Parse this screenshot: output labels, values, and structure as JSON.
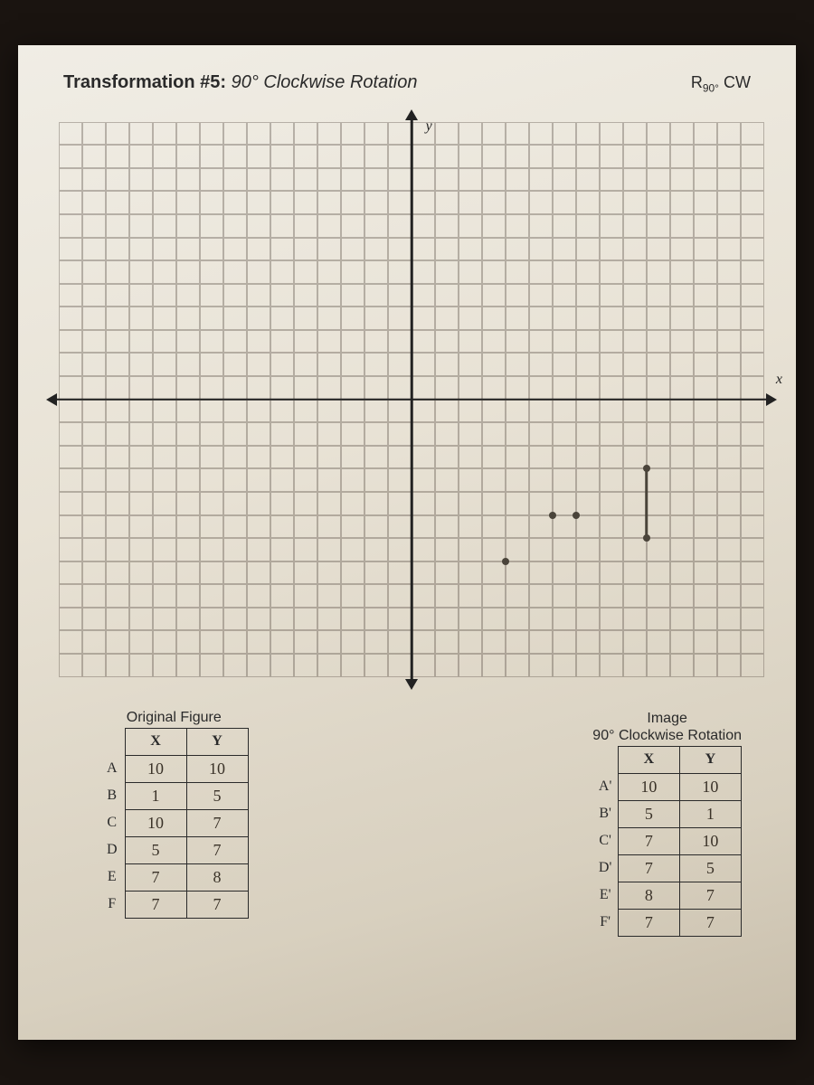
{
  "header": {
    "title_prefix": "Transformation #5:",
    "title_desc": "90° Clockwise Rotation",
    "notation_base": "R",
    "notation_sub": "90°",
    "notation_suffix": "CW"
  },
  "axes": {
    "x_label": "x",
    "y_label": "y"
  },
  "grid": {
    "cols": 30,
    "rows": 24,
    "xlim": [
      -15,
      15
    ],
    "ylim": [
      -12,
      12
    ],
    "grid_color": "#8a8070",
    "axis_color": "#222222",
    "background_color": "#e8e2d5"
  },
  "plotted": {
    "points": [
      {
        "x": 4,
        "y": -7
      },
      {
        "x": 6,
        "y": -5
      },
      {
        "x": 7,
        "y": -5
      },
      {
        "x": 10,
        "y": -3
      },
      {
        "x": 10,
        "y": -6
      }
    ],
    "lines": [
      {
        "x1": 10,
        "y1": -3,
        "x2": 10,
        "y2": -6
      }
    ],
    "point_color": "#4a443a",
    "point_radius": 4
  },
  "tables": {
    "original": {
      "caption": "Original Figure",
      "col_x": "X",
      "col_y": "Y",
      "rows": [
        {
          "label": "A",
          "x": "10",
          "y": "10"
        },
        {
          "label": "B",
          "x": "1",
          "y": "5"
        },
        {
          "label": "C",
          "x": "10",
          "y": "7"
        },
        {
          "label": "D",
          "x": "5",
          "y": "7"
        },
        {
          "label": "E",
          "x": "7",
          "y": "8"
        },
        {
          "label": "F",
          "x": "7",
          "y": "7"
        }
      ]
    },
    "image": {
      "caption_line1": "Image",
      "caption_line2": "90° Clockwise Rotation",
      "col_x": "X",
      "col_y": "Y",
      "rows": [
        {
          "label": "A'",
          "x": "10",
          "y": "10"
        },
        {
          "label": "B'",
          "x": "5",
          "y": "1"
        },
        {
          "label": "C'",
          "x": "7",
          "y": "10"
        },
        {
          "label": "D'",
          "x": "7",
          "y": "5"
        },
        {
          "label": "E'",
          "x": "8",
          "y": "7"
        },
        {
          "label": "F'",
          "x": "7",
          "y": "7"
        }
      ]
    }
  }
}
